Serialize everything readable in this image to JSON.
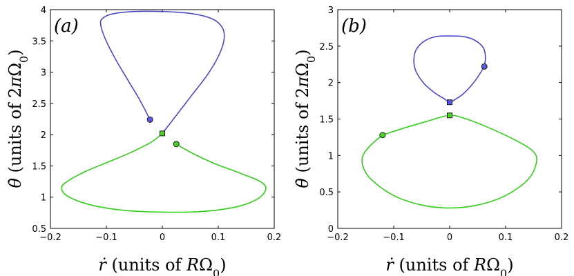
{
  "chart_data": [
    {
      "type": "line",
      "panel_label": "(a)",
      "xlabel": {
        "symbol": "ṙ",
        "prefix": " (units of ",
        "var": "R",
        "rest": "Ω",
        "sub": "0",
        "suffix": ")"
      },
      "ylabel": {
        "symbol": "θ̇",
        "prefix": " (units of 2",
        "var": "π",
        "rest": "Ω",
        "sub": "0",
        "suffix": ")"
      },
      "xlim": [
        -0.2,
        0.2
      ],
      "ylim": [
        0.5,
        4
      ],
      "xticks": [
        -0.2,
        -0.1,
        0,
        0.1,
        0.2
      ],
      "xtick_labels": [
        "−0.2",
        "−0.1",
        "0",
        "0.1",
        "0.2"
      ],
      "yticks": [
        0.5,
        1,
        1.5,
        2,
        2.5,
        3,
        3.5,
        4
      ],
      "ytick_labels": [
        "0.5",
        "1",
        "1.5",
        "2",
        "2.5",
        "3",
        "3.5",
        "4"
      ],
      "series": [
        {
          "name": "blue",
          "color": "#4a4ac8",
          "x": [
            -0.022,
            -0.04,
            -0.06,
            -0.08,
            -0.095,
            -0.105,
            -0.11,
            -0.108,
            -0.09,
            -0.05,
            0,
            0.05,
            0.09,
            0.108,
            0.11,
            0.1,
            0.08,
            0.05,
            0.02,
            0
          ],
          "y": [
            2.24,
            2.55,
            2.85,
            3.15,
            3.4,
            3.6,
            3.75,
            3.85,
            3.93,
            3.97,
            3.97,
            3.94,
            3.85,
            3.7,
            3.5,
            3.25,
            2.95,
            2.6,
            2.25,
            2.02
          ]
        },
        {
          "name": "green",
          "color": "#33cc1a",
          "x": [
            0,
            -0.02,
            -0.06,
            -0.1,
            -0.14,
            -0.17,
            -0.18,
            -0.17,
            -0.13,
            -0.07,
            0,
            0.07,
            0.13,
            0.17,
            0.185,
            0.175,
            0.14,
            0.09,
            0.05,
            0.025
          ],
          "y": [
            2.02,
            1.88,
            1.7,
            1.55,
            1.4,
            1.25,
            1.15,
            1.02,
            0.88,
            0.79,
            0.76,
            0.77,
            0.84,
            0.97,
            1.13,
            1.25,
            1.38,
            1.55,
            1.72,
            1.85
          ]
        }
      ],
      "markers": [
        {
          "shape": "circle",
          "x": -0.022,
          "y": 2.24,
          "color": "#5a5ae0"
        },
        {
          "shape": "circle",
          "x": 0.025,
          "y": 1.85,
          "color": "#4cd42a"
        },
        {
          "shape": "square",
          "x": 0.0,
          "y": 2.02,
          "color": "#4cd42a"
        }
      ]
    },
    {
      "type": "line",
      "panel_label": "(b)",
      "xlabel": {
        "symbol": "ṙ",
        "prefix": " (units of ",
        "var": "R",
        "rest": "Ω",
        "sub": "0",
        "suffix": ")"
      },
      "ylabel": {
        "symbol": "θ̇",
        "prefix": " (units of 2",
        "var": "π",
        "rest": "Ω",
        "sub": "0",
        "suffix": ")"
      },
      "xlim": [
        -0.2,
        0.2
      ],
      "ylim": [
        0,
        3
      ],
      "xticks": [
        -0.2,
        -0.1,
        0,
        0.1,
        0.2
      ],
      "xtick_labels": [
        "−0.2",
        "−0.1",
        "0",
        "0.1",
        "0.2"
      ],
      "yticks": [
        0,
        0.5,
        1,
        1.5,
        2,
        2.5,
        3
      ],
      "ytick_labels": [
        "0",
        "0.5",
        "1",
        "1.5",
        "2",
        "2.5",
        "3"
      ],
      "series": [
        {
          "name": "blue",
          "color": "#4a4ac8",
          "x": [
            0.062,
            0.064,
            0.06,
            0.045,
            0.025,
            0,
            -0.025,
            -0.045,
            -0.06,
            -0.064,
            -0.06,
            -0.045,
            -0.025,
            -0.01,
            0,
            0.01,
            0.025,
            0.045,
            0.062
          ],
          "y": [
            2.22,
            2.35,
            2.48,
            2.58,
            2.63,
            2.64,
            2.63,
            2.57,
            2.45,
            2.3,
            2.15,
            1.98,
            1.85,
            1.78,
            1.73,
            1.77,
            1.85,
            2.02,
            2.22
          ]
        },
        {
          "name": "green",
          "color": "#33cc1a",
          "x": [
            -0.12,
            -0.14,
            -0.155,
            -0.155,
            -0.14,
            -0.1,
            -0.05,
            0,
            0.05,
            0.1,
            0.14,
            0.155,
            0.15,
            0.12,
            0.07,
            0.03,
            0,
            -0.04,
            -0.08,
            -0.12
          ],
          "y": [
            1.28,
            1.15,
            1.0,
            0.85,
            0.67,
            0.45,
            0.32,
            0.28,
            0.32,
            0.45,
            0.67,
            0.9,
            1.05,
            1.2,
            1.38,
            1.5,
            1.55,
            1.47,
            1.38,
            1.28
          ]
        }
      ],
      "markers": [
        {
          "shape": "circle",
          "x": 0.062,
          "y": 2.22,
          "color": "#5a5ae0"
        },
        {
          "shape": "circle",
          "x": -0.12,
          "y": 1.28,
          "color": "#4cd42a"
        },
        {
          "shape": "square",
          "x": 0.0,
          "y": 1.73,
          "color": "#5a5ae0"
        },
        {
          "shape": "square",
          "x": 0.0,
          "y": 1.55,
          "color": "#4cd42a"
        }
      ]
    }
  ]
}
